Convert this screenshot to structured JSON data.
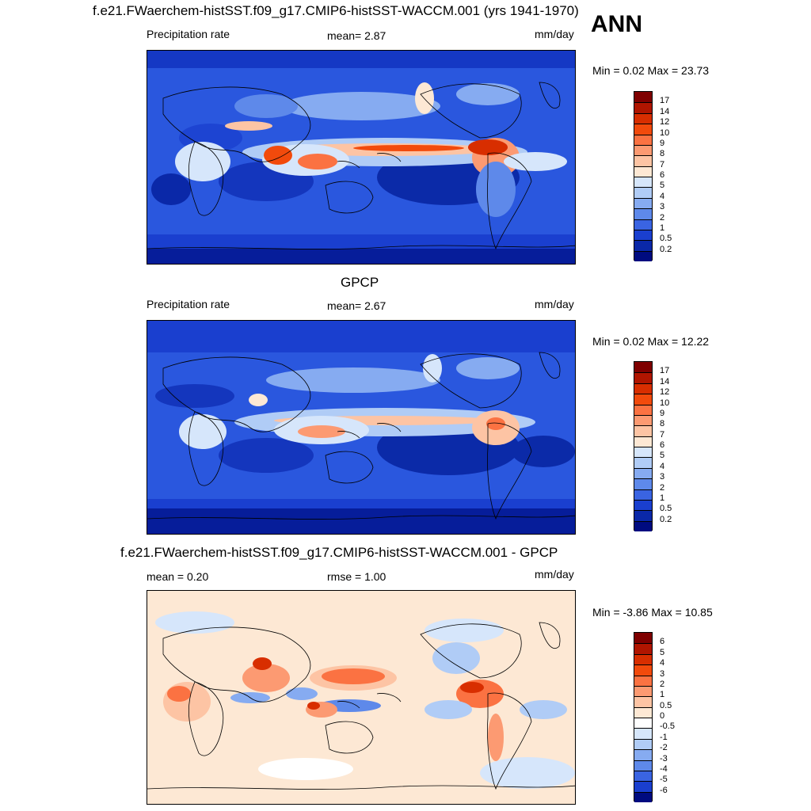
{
  "header": {
    "title": "f.e21.FWaerchem-histSST.f09_g17.CMIP6-histSST-WACCM.001 (yrs 1941-1970)",
    "season": "ANN"
  },
  "panels": [
    {
      "subtitle": "",
      "left_label": "Precipitation rate",
      "mid_label": "mean=   2.87",
      "units": "mm/day",
      "minmax": "Min =   0.02 Max =  23.73",
      "levels": [
        "17",
        "14",
        "12",
        "10",
        "9",
        "8",
        "7",
        "6",
        "5",
        "4",
        "3",
        "2",
        "1",
        "0.5",
        "0.2"
      ],
      "colors": [
        "#7f0000",
        "#b01500",
        "#d82e00",
        "#f24a0c",
        "#fb7242",
        "#fc9a72",
        "#fdc4a4",
        "#fde8d4",
        "#d6e6fb",
        "#b0ccf6",
        "#86abf1",
        "#5e89ea",
        "#3a64e2",
        "#1a3fcf",
        "#0a28a8",
        "#000b80"
      ]
    },
    {
      "subtitle": "GPCP",
      "left_label": "Precipitation rate",
      "mid_label": "mean=   2.67",
      "units": "mm/day",
      "minmax": "Min =   0.02 Max =  12.22",
      "levels": [
        "17",
        "14",
        "12",
        "10",
        "9",
        "8",
        "7",
        "6",
        "5",
        "4",
        "3",
        "2",
        "1",
        "0.5",
        "0.2"
      ],
      "colors": [
        "#7f0000",
        "#b01500",
        "#d82e00",
        "#f24a0c",
        "#fb7242",
        "#fc9a72",
        "#fdc4a4",
        "#fde8d4",
        "#d6e6fb",
        "#b0ccf6",
        "#86abf1",
        "#5e89ea",
        "#3a64e2",
        "#1a3fcf",
        "#0a28a8",
        "#000b80"
      ]
    },
    {
      "subtitle": "f.e21.FWaerchem-histSST.f09_g17.CMIP6-histSST-WACCM.001 - GPCP",
      "left_label": "mean =   0.20",
      "mid_label": "rmse =   1.00",
      "units": "mm/day",
      "minmax": "Min =  -3.86 Max =  10.85",
      "levels": [
        "6",
        "5",
        "4",
        "3",
        "2",
        "1",
        "0.5",
        "0",
        "-0.5",
        "-1",
        "-2",
        "-3",
        "-4",
        "-5",
        "-6"
      ],
      "colors": [
        "#7f0000",
        "#b01500",
        "#d82e00",
        "#f24a0c",
        "#fb7242",
        "#fc9a72",
        "#fdc4a4",
        "#fde8d4",
        "#ffffff",
        "#d6e6fb",
        "#b0ccf6",
        "#86abf1",
        "#5e89ea",
        "#3a64e2",
        "#1a3fcf",
        "#000b80"
      ]
    }
  ]
}
